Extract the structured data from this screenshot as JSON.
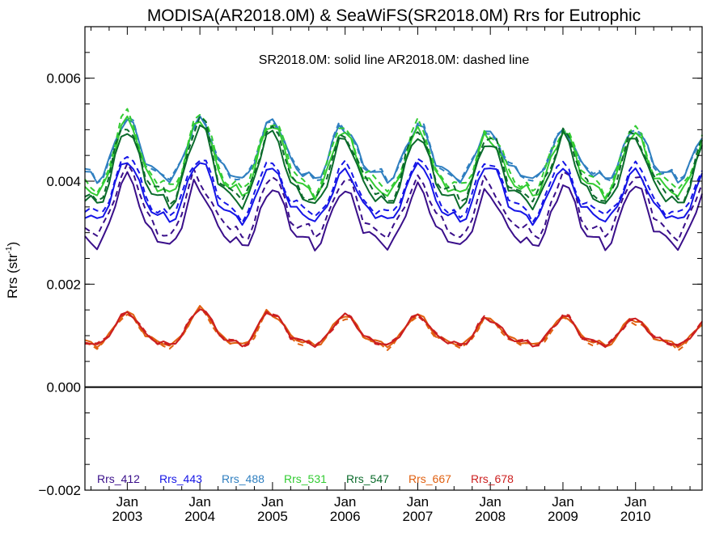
{
  "chart_data": {
    "type": "line",
    "title": "MODISA(AR2018.0M) & SeaWiFS(SR2018.0M)  Rrs for Eutrophic",
    "subtitle": "SR2018.0M: solid line   AR2018.0M: dashed line",
    "ylabel_main": "Rrs (str",
    "ylabel_sup": "-1",
    "ylabel_end": ")",
    "xlabel": "",
    "ylim": [
      -0.002,
      0.007
    ],
    "xlim": [
      "2002-06",
      "2010-12"
    ],
    "y_ticks": [
      -0.002,
      0.0,
      0.002,
      0.004,
      0.006
    ],
    "y_tick_labels": [
      "−0.002",
      "0.000",
      "0.002",
      "0.004",
      "0.006"
    ],
    "x_ticks": [
      "2003-01",
      "2004-01",
      "2005-01",
      "2006-01",
      "2007-01",
      "2008-01",
      "2009-01",
      "2010-01"
    ],
    "x_tick_labels": [
      {
        "month": "Jan",
        "year": "2003"
      },
      {
        "month": "Jan",
        "year": "2004"
      },
      {
        "month": "Jan",
        "year": "2005"
      },
      {
        "month": "Jan",
        "year": "2006"
      },
      {
        "month": "Jan",
        "year": "2007"
      },
      {
        "month": "Jan",
        "year": "2008"
      },
      {
        "month": "Jan",
        "year": "2009"
      },
      {
        "month": "Jan",
        "year": "2010"
      }
    ],
    "reference_line": 0.0,
    "grid": false,
    "legend_position": "bottom-left",
    "line_styles": {
      "SR2018.0M": "solid",
      "AR2018.0M": "dashed"
    },
    "series": [
      {
        "name": "Rrs_412",
        "color": "#3a0f8a",
        "winter": 0.004,
        "summer": 0.0027,
        "cycles": [
          0.0041,
          0.0038,
          0.0039,
          0.0038,
          0.0039,
          0.0037,
          0.004,
          0.0039
        ],
        "dashed_offset": 0.0002
      },
      {
        "name": "Rrs_443",
        "color": "#1515e6",
        "winter": 0.0043,
        "summer": 0.0032,
        "cycles": [
          0.0044,
          0.0044,
          0.0042,
          0.0042,
          0.0044,
          0.0043,
          0.0042,
          0.0042
        ],
        "dashed_offset": 0.0001
      },
      {
        "name": "Rrs_488",
        "color": "#2f7fc0",
        "winter": 0.0051,
        "summer": 0.004,
        "cycles": [
          0.0052,
          0.0052,
          0.0052,
          0.005,
          0.0051,
          0.0049,
          0.005,
          0.005
        ],
        "dashed_offset": 0.0
      },
      {
        "name": "Rrs_531",
        "color": "#33cc33",
        "winter": 0.005,
        "summer": 0.0037,
        "cycles": [
          0.0052,
          0.0052,
          0.0051,
          0.0049,
          0.005,
          0.0048,
          0.005,
          0.0049
        ],
        "dashed_offset": 0.0001
      },
      {
        "name": "Rrs_547",
        "color": "#0b6b2b",
        "winter": 0.0049,
        "summer": 0.0035,
        "cycles": [
          0.005,
          0.0051,
          0.0049,
          0.0048,
          0.0049,
          0.0047,
          0.0049,
          0.0048
        ],
        "dashed_offset": 0.0001
      },
      {
        "name": "Rrs_667",
        "color": "#e06010",
        "winter": 0.0014,
        "summer": 0.0008,
        "cycles": [
          0.00145,
          0.00155,
          0.0014,
          0.0014,
          0.0014,
          0.0013,
          0.0014,
          0.0013
        ],
        "dashed_offset": -3e-05
      },
      {
        "name": "Rrs_678",
        "color": "#cc1f1f",
        "winter": 0.0014,
        "summer": 0.0008,
        "cycles": [
          0.00145,
          0.00155,
          0.0014,
          0.0014,
          0.0014,
          0.0013,
          0.0014,
          0.0013
        ],
        "dashed_offset": 0.0
      }
    ]
  }
}
